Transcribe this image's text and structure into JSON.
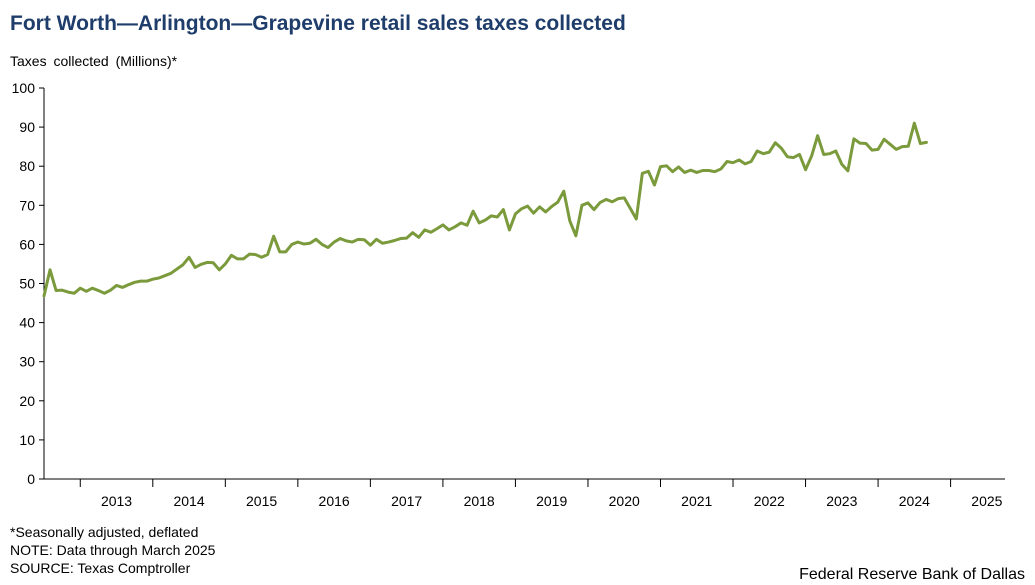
{
  "title": "Fort Worth—Arlington—Grapevine retail sales taxes collected",
  "notes": {
    "line1": "*Seasonally adjusted, deflated",
    "line2": "NOTE: Data through March 2025",
    "line3": "SOURCE: Texas Comptroller"
  },
  "credit": "Federal Reserve Bank of Dallas",
  "colors": {
    "line": "#7a9a3c",
    "title": "#1f3d6b"
  },
  "chart_data": {
    "type": "line",
    "title": "Fort Worth—Arlington—Grapevine retail sales taxes collected",
    "ylabel": "Taxes  collected  (Millions)*",
    "xlabel": "",
    "ylim": [
      0,
      100
    ],
    "yticks": [
      0,
      10,
      20,
      30,
      40,
      50,
      60,
      70,
      80,
      90,
      100
    ],
    "xlim": [
      2012.5,
      2025.75
    ],
    "xtick_labels": [
      "2013",
      "2014",
      "2015",
      "2016",
      "2017",
      "2018",
      "2019",
      "2020",
      "2021",
      "2022",
      "2023",
      "2024",
      "2025"
    ],
    "grid": false,
    "legend": "none",
    "start": "2012-07",
    "frequency": "monthly",
    "values": [
      46.8,
      53.5,
      48.2,
      48.3,
      47.8,
      47.5,
      48.8,
      48.0,
      48.8,
      48.2,
      47.5,
      48.3,
      49.5,
      49.0,
      49.7,
      50.3,
      50.6,
      50.6,
      51.1,
      51.4,
      52.0,
      52.6,
      53.7,
      54.8,
      56.7,
      54.1,
      54.9,
      55.4,
      55.3,
      53.5,
      55.0,
      57.2,
      56.3,
      56.3,
      57.5,
      57.4,
      56.7,
      57.4,
      62.1,
      58.1,
      58.1,
      60.0,
      60.6,
      60.1,
      60.3,
      61.3,
      60.0,
      59.2,
      60.6,
      61.5,
      60.9,
      60.6,
      61.3,
      61.2,
      59.8,
      61.3,
      60.3,
      60.6,
      61.0,
      61.5,
      61.6,
      63.0,
      61.8,
      63.7,
      63.1,
      64.0,
      65.0,
      63.7,
      64.5,
      65.5,
      64.9,
      68.5,
      65.5,
      66.2,
      67.3,
      67.0,
      68.9,
      63.7,
      67.8,
      69.1,
      69.8,
      68.0,
      69.6,
      68.3,
      69.7,
      70.8,
      73.6,
      66.0,
      62.2,
      70.0,
      70.6,
      68.9,
      70.7,
      71.5,
      70.9,
      71.7,
      71.9,
      69.2,
      66.5,
      78.2,
      78.7,
      75.2,
      79.9,
      80.1,
      78.6,
      79.8,
      78.4,
      79.0,
      78.4,
      78.9,
      78.9,
      78.6,
      79.3,
      81.2,
      80.9,
      81.6,
      80.6,
      81.2,
      83.9,
      83.2,
      83.6,
      86.0,
      84.6,
      82.4,
      82.2,
      83.0,
      79.1,
      82.6,
      87.8,
      83.0,
      83.2,
      83.9,
      80.5,
      78.8,
      87.0,
      85.9,
      85.8,
      84.1,
      84.3,
      86.9,
      85.6,
      84.3,
      85.0,
      85.1,
      91.0,
      85.8,
      86.1
    ]
  }
}
